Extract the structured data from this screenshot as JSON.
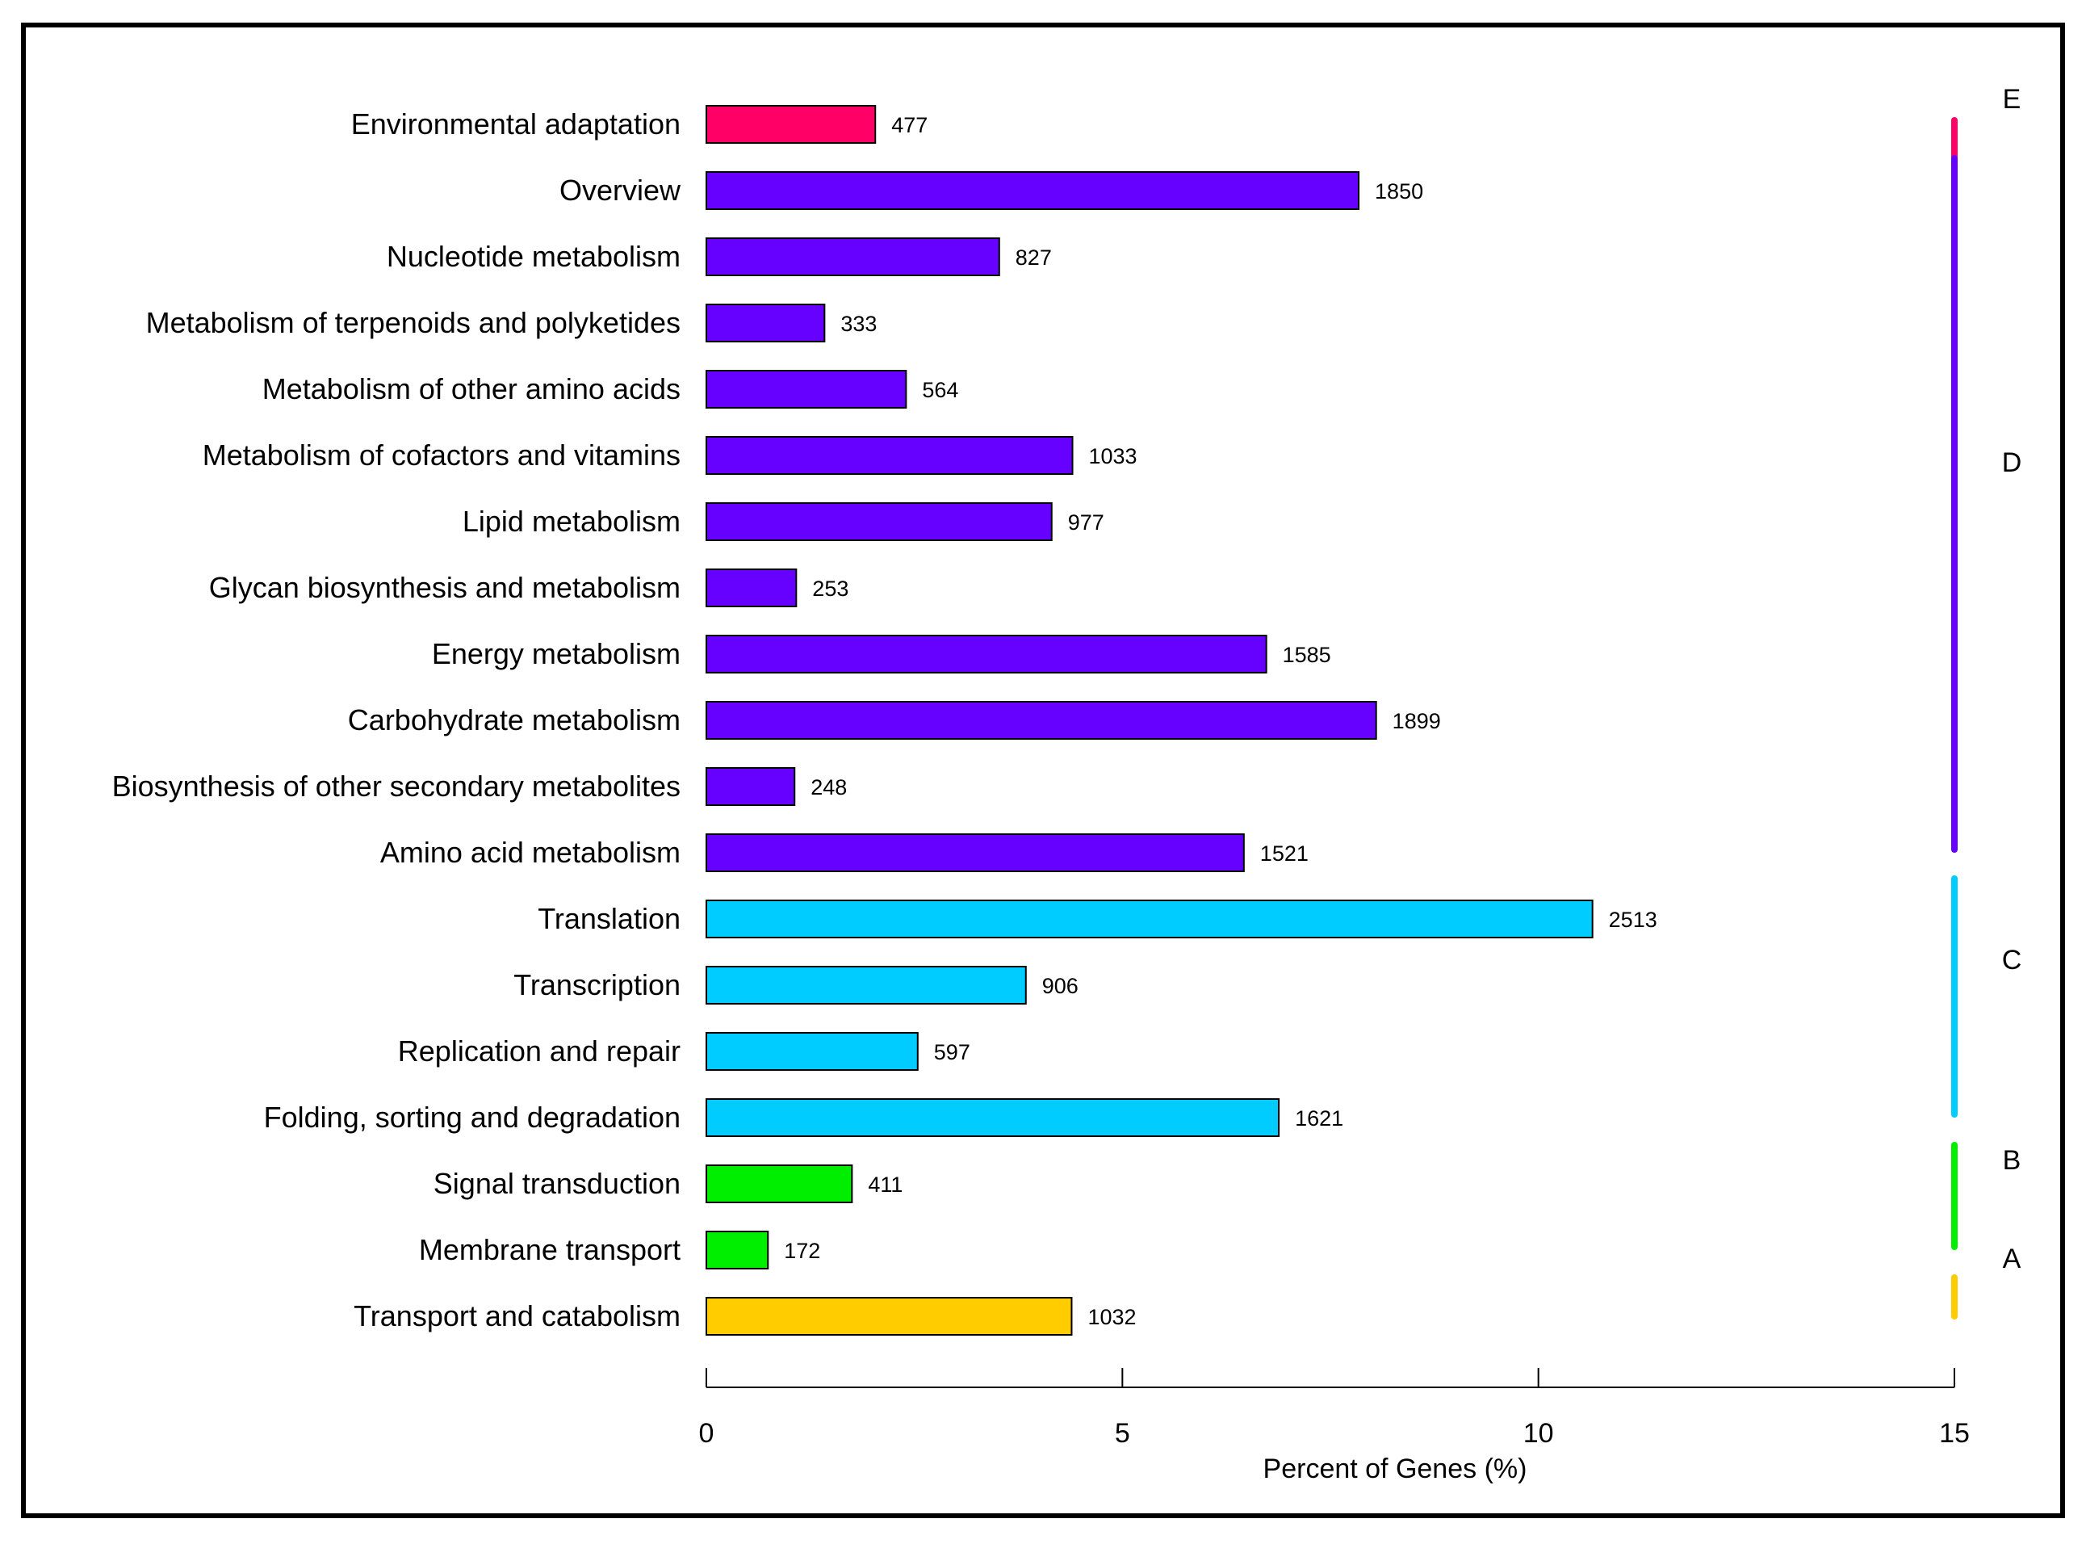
{
  "chart_data": {
    "type": "bar",
    "orientation": "horizontal",
    "title": "",
    "xlabel": "Percent of Genes (%)",
    "ylabel": "",
    "xlim": [
      0,
      15
    ],
    "xticks": [
      "0",
      "5",
      "10",
      "15"
    ],
    "grid": false,
    "categories": [
      "Environmental adaptation",
      "Overview",
      "Nucleotide metabolism",
      "Metabolism of terpenoids and polyketides",
      "Metabolism of other amino acids",
      "Metabolism of cofactors and vitamins",
      "Lipid metabolism",
      "Glycan biosynthesis and metabolism",
      "Energy metabolism",
      "Carbohydrate metabolism",
      "Biosynthesis of other secondary metabolites",
      "Amino acid metabolism",
      "Translation",
      "Transcription",
      "Replication and repair",
      "Folding, sorting and degradation",
      "Signal transduction",
      "Membrane transport",
      "Transport and catabolism"
    ],
    "counts": [
      "477",
      "1850",
      "827",
      "333",
      "564",
      "1033",
      "977",
      "253",
      "1585",
      "1899",
      "248",
      "1521",
      "2513",
      "906",
      "597",
      "1621",
      "411",
      "172",
      "1032"
    ],
    "percent_values": [
      2.03,
      7.84,
      3.52,
      1.42,
      2.4,
      4.4,
      4.15,
      1.08,
      6.73,
      8.05,
      1.06,
      6.46,
      10.65,
      3.84,
      2.54,
      6.88,
      1.75,
      0.74,
      4.39
    ],
    "groups": [
      "E",
      "D",
      "D",
      "D",
      "D",
      "D",
      "D",
      "D",
      "D",
      "D",
      "D",
      "D",
      "C",
      "C",
      "C",
      "C",
      "B",
      "B",
      "A"
    ],
    "group_legend": [
      {
        "label": "E",
        "color": "#ff0066"
      },
      {
        "label": "D",
        "color": "#6600ff"
      },
      {
        "label": "C",
        "color": "#00ccff"
      },
      {
        "label": "B",
        "color": "#00ee00"
      },
      {
        "label": "A",
        "color": "#ffcc00"
      }
    ]
  }
}
